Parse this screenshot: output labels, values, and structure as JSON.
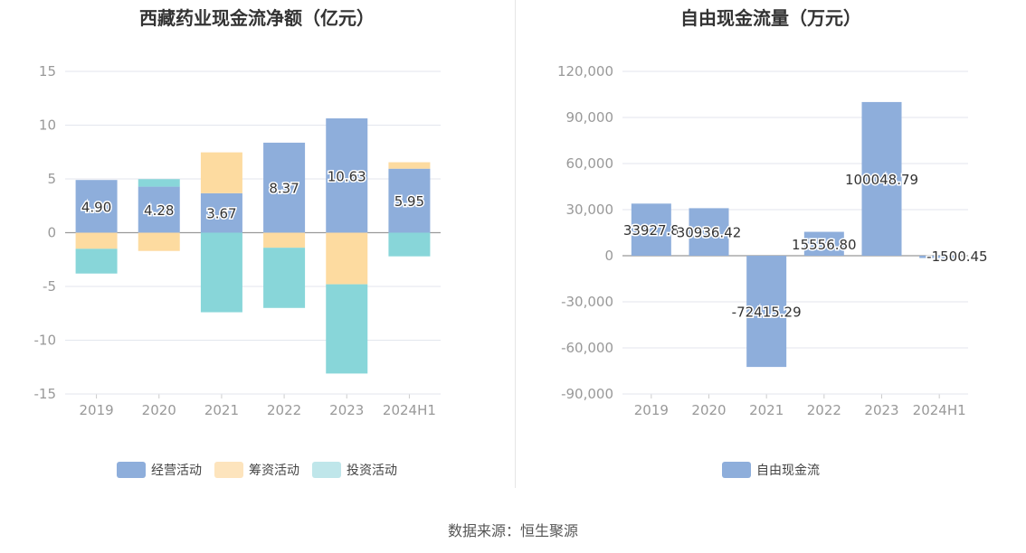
{
  "footer": {
    "source": "数据来源：恒生聚源"
  },
  "chart_data": [
    {
      "type": "bar",
      "stacked": true,
      "title": "西藏药业现金流净额（亿元）",
      "categories": [
        "2019",
        "2020",
        "2021",
        "2022",
        "2023",
        "2024H1"
      ],
      "ylim": [
        -15,
        15
      ],
      "yticks": [
        "15",
        "10",
        "5",
        "0",
        "-5",
        "-10",
        "-15"
      ],
      "ytick_values": [
        15,
        10,
        5,
        0,
        -5,
        -10,
        -15
      ],
      "grid": true,
      "legend_position": "bottom",
      "series": [
        {
          "name": "经营活动",
          "color": "#8eaedb",
          "values": [
            4.9,
            4.28,
            3.67,
            8.37,
            10.63,
            5.95
          ],
          "labels": [
            "4.90",
            "4.28",
            "3.67",
            "8.37",
            "10.63",
            "5.95"
          ]
        },
        {
          "name": "筹资活动",
          "color": "#fddba0",
          "values": [
            -1.5,
            -1.7,
            3.8,
            -1.4,
            -4.8,
            0.6
          ]
        },
        {
          "name": "投资活动",
          "color": "#88d6d9",
          "values": [
            -2.3,
            0.7,
            -7.4,
            -5.6,
            -8.3,
            -2.2
          ]
        }
      ],
      "legend_colors": [
        "#8eaedb",
        "#fde4bd",
        "#bfe6ea"
      ]
    },
    {
      "type": "bar",
      "title": "自由现金流量（万元）",
      "categories": [
        "2019",
        "2020",
        "2021",
        "2022",
        "2023",
        "2024H1"
      ],
      "ylim": [
        -90000,
        120000
      ],
      "yticks": [
        "120,000",
        "90,000",
        "60,000",
        "30,000",
        "0",
        "-30,000",
        "-60,000",
        "-90,000"
      ],
      "ytick_values": [
        120000,
        90000,
        60000,
        30000,
        0,
        -30000,
        -60000,
        -90000
      ],
      "grid": true,
      "legend_position": "bottom",
      "series": [
        {
          "name": "自由现金流",
          "color": "#8eaedb",
          "values": [
            33927.8,
            30936.42,
            -72415.29,
            15556.8,
            100048.79,
            -1500.45
          ],
          "labels": [
            "33927.8",
            "30936.42",
            "-72415.29",
            "15556.80",
            "100048.79",
            "-1500.45"
          ]
        }
      ]
    }
  ]
}
